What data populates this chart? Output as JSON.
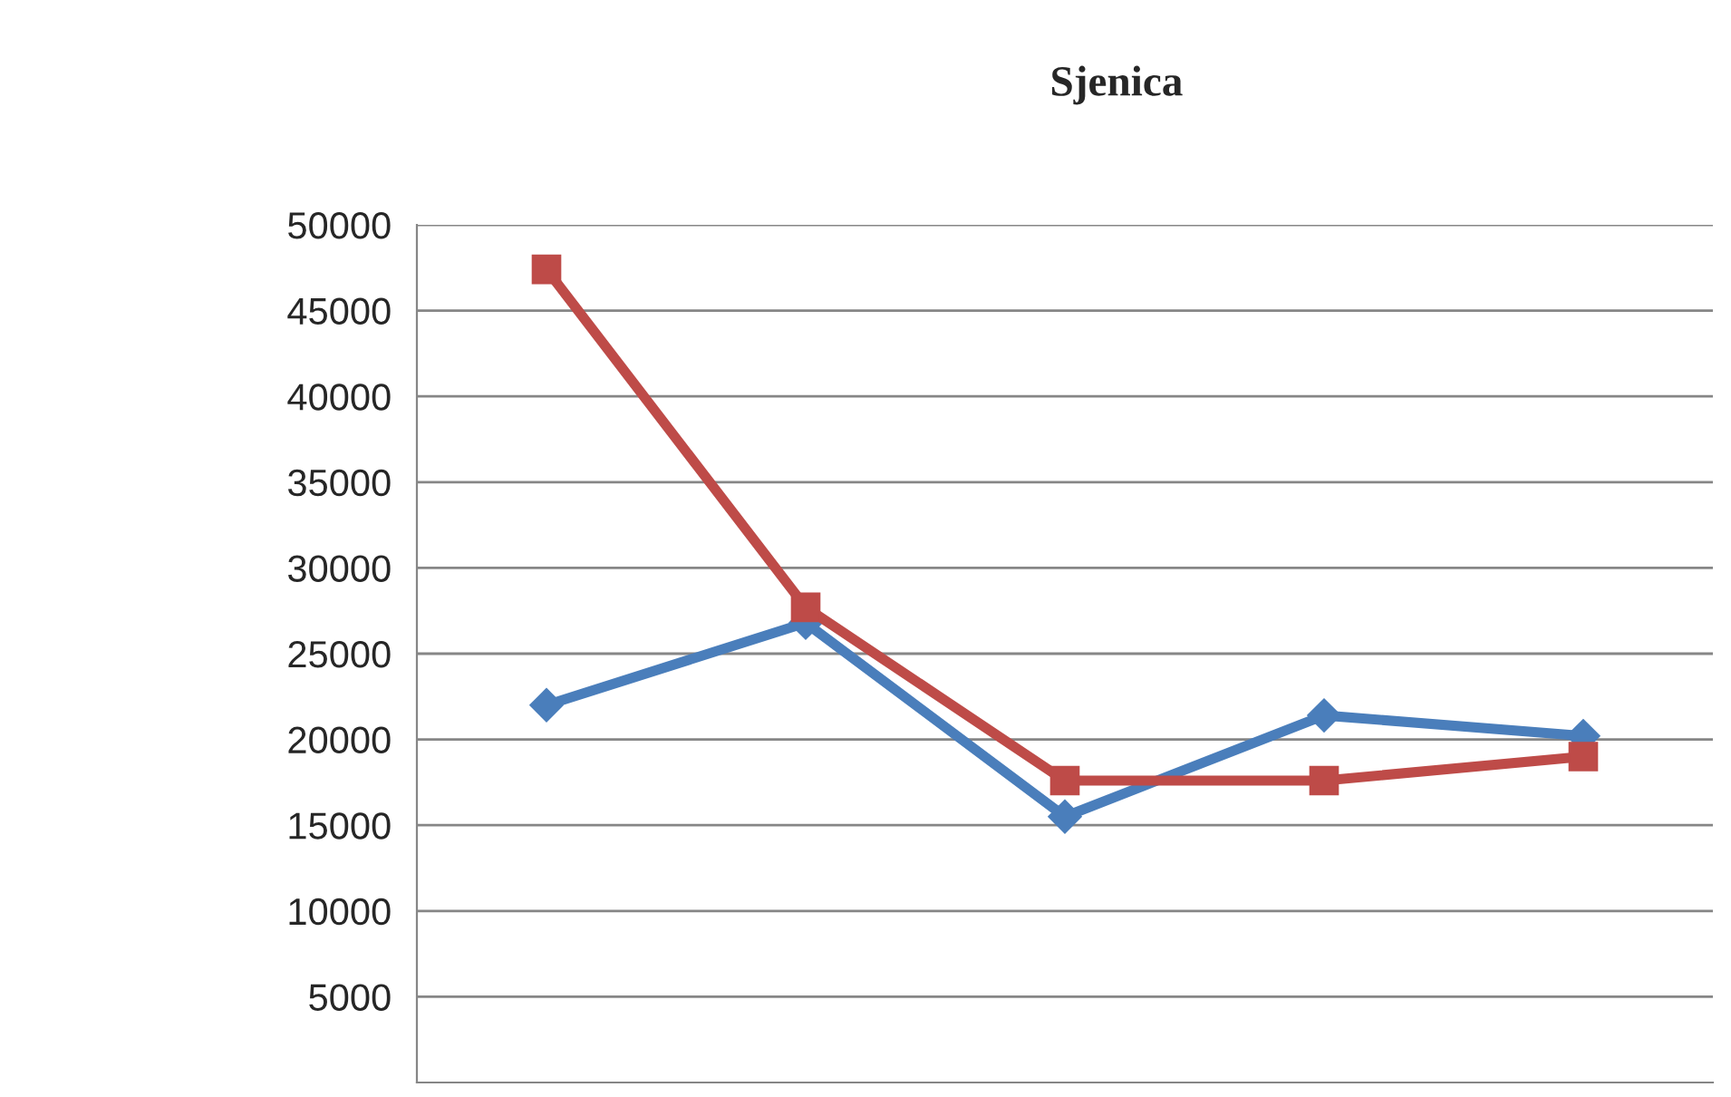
{
  "chart_data": {
    "type": "line",
    "title": "Sjenica",
    "categories": [
      null,
      null,
      null,
      null,
      null
    ],
    "series": [
      {
        "color": "#4a7ebb",
        "marker": "diamond",
        "values": [
          22000,
          26800,
          15500,
          21400,
          20200
        ]
      },
      {
        "color": "#be4b48",
        "marker": "square",
        "values": [
          47400,
          27700,
          17600,
          17600,
          19000
        ]
      }
    ],
    "ylim": [
      0,
      50000
    ],
    "yticks": [
      5000,
      10000,
      15000,
      20000,
      25000,
      30000,
      35000,
      40000,
      45000,
      50000
    ],
    "grid": "y",
    "line_style": "solid",
    "tick_labels": "y"
  }
}
